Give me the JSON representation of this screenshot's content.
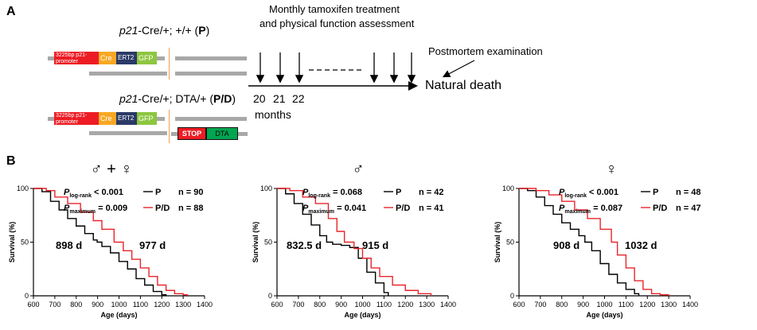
{
  "panel_a": {
    "letter": "A",
    "genotype_p": {
      "gene": "p21",
      "rest": "-Cre/+; +/+",
      "code": "P"
    },
    "genotype_pd": {
      "gene": "p21",
      "rest": "-Cre/+; DTA/+",
      "code": "P/D"
    },
    "construct": {
      "promoter": "3225bp p21-promoter",
      "cre": "Cre",
      "ert2": "ERT2",
      "gfp": "GFP",
      "stop": "STOP",
      "dta": "DTA"
    },
    "timeline": {
      "treatment_line1": "Monthly tamoxifen treatment",
      "treatment_line2": "and physical function assessment",
      "postmortem": "Postmortem examination",
      "natural_death": "Natural death",
      "months": [
        "20",
        "21",
        "22"
      ],
      "unit": "months"
    }
  },
  "panel_b": {
    "letter": "B",
    "colors": {
      "P": "#000000",
      "PD": "#e8262b"
    }
  },
  "chart_data": [
    {
      "type": "line",
      "symbol": "♂ + ♀",
      "xlabel": "Age (days)",
      "ylabel": "Survival (%)",
      "xlim": [
        600,
        1400
      ],
      "ylim": [
        0,
        100
      ],
      "xticks": [
        600,
        700,
        800,
        900,
        1000,
        1100,
        1200,
        1300,
        1400
      ],
      "yticks": [
        0,
        50,
        100
      ],
      "stats": {
        "logrank_label": "log-rank",
        "logrank": "< 0.001",
        "max_label": "maximum",
        "max": "= 0.009"
      },
      "legend": [
        {
          "name": "P",
          "n": "n = 90"
        },
        {
          "name": "P/D",
          "n": "n = 88"
        }
      ],
      "median_labels": [
        "898 d",
        "977 d"
      ],
      "series": [
        {
          "name": "P",
          "x": [
            600,
            640,
            680,
            720,
            760,
            800,
            840,
            880,
            898,
            920,
            960,
            1000,
            1040,
            1080,
            1120,
            1160,
            1200,
            1220
          ],
          "y": [
            100,
            97,
            88,
            80,
            72,
            65,
            58,
            52,
            50,
            46,
            40,
            32,
            25,
            16,
            10,
            4,
            1,
            0
          ]
        },
        {
          "name": "P/D",
          "x": [
            600,
            660,
            700,
            760,
            820,
            880,
            920,
            977,
            1020,
            1060,
            1100,
            1140,
            1180,
            1220,
            1260,
            1300,
            1320
          ],
          "y": [
            100,
            98,
            92,
            86,
            78,
            70,
            62,
            50,
            42,
            34,
            26,
            18,
            10,
            5,
            2,
            1,
            0
          ]
        }
      ]
    },
    {
      "type": "line",
      "symbol": "♂",
      "xlabel": "Age (days)",
      "ylabel": "Survival (%)",
      "xlim": [
        600,
        1400
      ],
      "ylim": [
        0,
        100
      ],
      "xticks": [
        600,
        700,
        800,
        900,
        1000,
        1100,
        1200,
        1300,
        1400
      ],
      "yticks": [
        0,
        50,
        100
      ],
      "stats": {
        "logrank_label": "log-rank",
        "logrank": "= 0.068",
        "max_label": "maximum",
        "max": "= 0.041"
      },
      "legend": [
        {
          "name": "P",
          "n": "n = 42"
        },
        {
          "name": "P/D",
          "n": "n = 41"
        }
      ],
      "median_labels": [
        "832.5 d",
        "915 d"
      ],
      "series": [
        {
          "name": "P",
          "x": [
            600,
            640,
            680,
            720,
            760,
            800,
            832,
            860,
            900,
            940,
            980,
            1020,
            1060,
            1100,
            1120
          ],
          "y": [
            100,
            95,
            86,
            76,
            66,
            56,
            50,
            48,
            47,
            45,
            35,
            22,
            12,
            3,
            0
          ]
        },
        {
          "name": "P/D",
          "x": [
            600,
            660,
            720,
            780,
            840,
            880,
            915,
            960,
            1000,
            1040,
            1080,
            1140,
            1200,
            1260,
            1320
          ],
          "y": [
            100,
            98,
            92,
            86,
            72,
            60,
            50,
            44,
            35,
            26,
            18,
            10,
            5,
            2,
            0
          ]
        }
      ]
    },
    {
      "type": "line",
      "symbol": "♀",
      "xlabel": "Age (days)",
      "ylabel": "Survival (%)",
      "xlim": [
        600,
        1400
      ],
      "ylim": [
        0,
        100
      ],
      "xticks": [
        600,
        700,
        800,
        900,
        1000,
        1100,
        1200,
        1300,
        1400
      ],
      "yticks": [
        0,
        50,
        100
      ],
      "stats": {
        "logrank_label": "log-rank",
        "logrank": "< 0.001",
        "max_label": "maximum",
        "max": "= 0.087"
      },
      "legend": [
        {
          "name": "P",
          "n": "n = 48"
        },
        {
          "name": "P/D",
          "n": "n = 47"
        }
      ],
      "median_labels": [
        "908 d",
        "1032 d"
      ],
      "series": [
        {
          "name": "P",
          "x": [
            600,
            640,
            680,
            720,
            760,
            800,
            840,
            880,
            908,
            940,
            980,
            1020,
            1060,
            1100,
            1140,
            1160
          ],
          "y": [
            100,
            98,
            92,
            84,
            76,
            68,
            62,
            56,
            50,
            42,
            30,
            20,
            12,
            6,
            2,
            0
          ]
        },
        {
          "name": "P/D",
          "x": [
            600,
            680,
            740,
            800,
            860,
            920,
            980,
            1032,
            1060,
            1100,
            1140,
            1180,
            1220,
            1260,
            1300
          ],
          "y": [
            100,
            98,
            94,
            88,
            80,
            72,
            62,
            50,
            38,
            26,
            14,
            6,
            2,
            1,
            0
          ]
        }
      ]
    }
  ]
}
